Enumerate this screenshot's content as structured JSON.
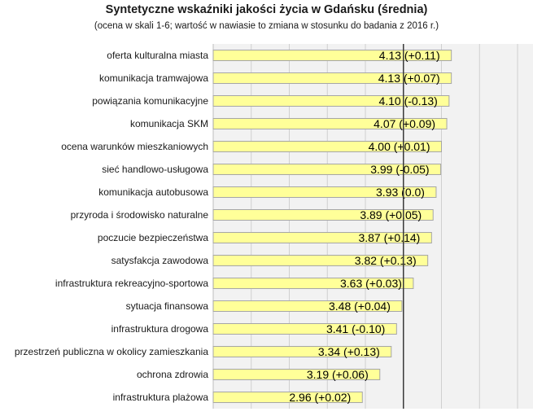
{
  "chart_data": {
    "type": "bar",
    "orientation": "horizontal",
    "title": "Syntetyczne wskaźniki jakości życia w Gdańsku (średnia)",
    "subtitle": "(ocena w skali 1-6; wartość w nawiasie to zmiana w stosunku do badania z 2016 r.)",
    "categories": [
      "oferta kulturalna miasta",
      "komunikacja tramwajowa",
      "powiązania komunikacyjne",
      "komunikacja SKM",
      "ocena warunków mieszkaniowych",
      "sieć handlowo-usługowa",
      "komunikacja autobusowa",
      "przyroda i środowisko naturalne",
      "poczucie bezpieczeństwa",
      "satysfakcja zawodowa",
      "infrastruktura rekreacyjno-sportowa",
      "sytuacja finansowa",
      "infrastruktura drogowa",
      "przestrzeń publiczna w okolicy zamieszkania",
      "ochrona zdrowia",
      "infrastruktura plażowa"
    ],
    "values": [
      4.13,
      4.13,
      4.1,
      4.07,
      4.0,
      3.99,
      3.93,
      3.89,
      3.87,
      3.82,
      3.63,
      3.48,
      3.41,
      3.34,
      3.19,
      2.96
    ],
    "data_labels": [
      "4.13 (+0.11)",
      "4.13 (+0.07)",
      "4.10 (-0.13)",
      "4.07 (+0.09)",
      "4.00 (+0.01)",
      "3.99 (-0.05)",
      "3.93 (0.0)",
      "3.89 (+0.05)",
      "3.87 (+0.14)",
      "3.82 (+0.13)",
      "3.63 (+0.03)",
      "3.48 (+0.04)",
      "3.41 (-0.10)",
      "3.34 (+0.13)",
      "3.19 (+0.06)",
      "2.96 (+0.02)"
    ],
    "xlim": [
      1,
      6
    ],
    "reference_line": 3.5,
    "grid": true,
    "bar_color": "#ffff99",
    "bar_stroke": "#a6a6a6",
    "plot_background": "#f2f2f2",
    "grid_color": "#d0d0d0",
    "reference_line_color": "#3a3a3a"
  }
}
